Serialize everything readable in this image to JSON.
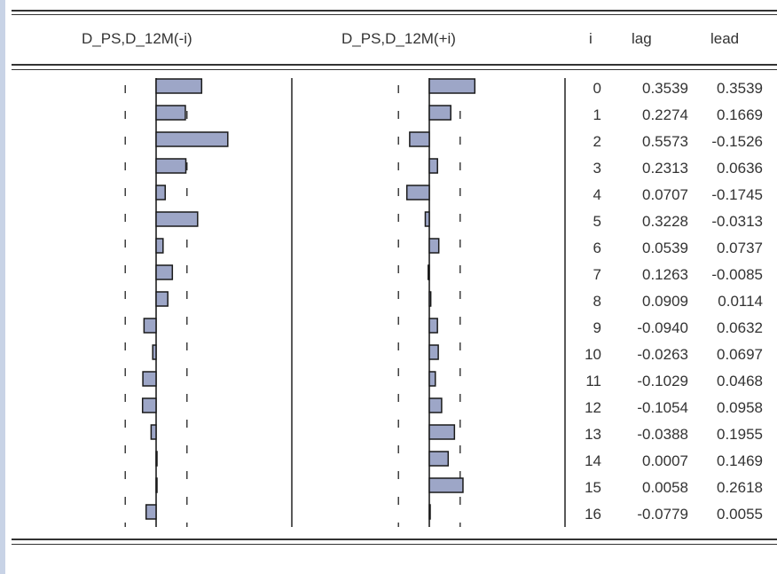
{
  "header": {
    "col_left": "D_PS,D_12M(-i)",
    "col_right": "D_PS,D_12M(+i)",
    "col_i": "i",
    "col_lag": "lag",
    "col_lead": "lead"
  },
  "colors": {
    "bar_fill": "#9da6c7",
    "bar_stroke": "#1a1a1a",
    "rule": "#333333"
  },
  "confidence_band": 0.24,
  "rows": [
    {
      "i": "0",
      "lag": "0.3539",
      "lead": "0.3539"
    },
    {
      "i": "1",
      "lag": "0.2274",
      "lead": "0.1669"
    },
    {
      "i": "2",
      "lag": "0.5573",
      "lead": "-0.1526"
    },
    {
      "i": "3",
      "lag": "0.2313",
      "lead": "0.0636"
    },
    {
      "i": "4",
      "lag": "0.0707",
      "lead": "-0.1745"
    },
    {
      "i": "5",
      "lag": "0.3228",
      "lead": "-0.0313"
    },
    {
      "i": "6",
      "lag": "0.0539",
      "lead": "0.0737"
    },
    {
      "i": "7",
      "lag": "0.1263",
      "lead": "-0.0085"
    },
    {
      "i": "8",
      "lag": "0.0909",
      "lead": "0.0114"
    },
    {
      "i": "9",
      "lag": "-0.0940",
      "lead": "0.0632"
    },
    {
      "i": "10",
      "lag": "-0.0263",
      "lead": "0.0697"
    },
    {
      "i": "11",
      "lag": "-0.1029",
      "lead": "0.0468"
    },
    {
      "i": "12",
      "lag": "-0.1054",
      "lead": "0.0958"
    },
    {
      "i": "13",
      "lag": "-0.0388",
      "lead": "0.1955"
    },
    {
      "i": "14",
      "lag": "0.0007",
      "lead": "0.1469"
    },
    {
      "i": "15",
      "lag": "0.0058",
      "lead": "0.2618"
    },
    {
      "i": "16",
      "lag": "-0.0779",
      "lead": "0.0055"
    }
  ]
}
